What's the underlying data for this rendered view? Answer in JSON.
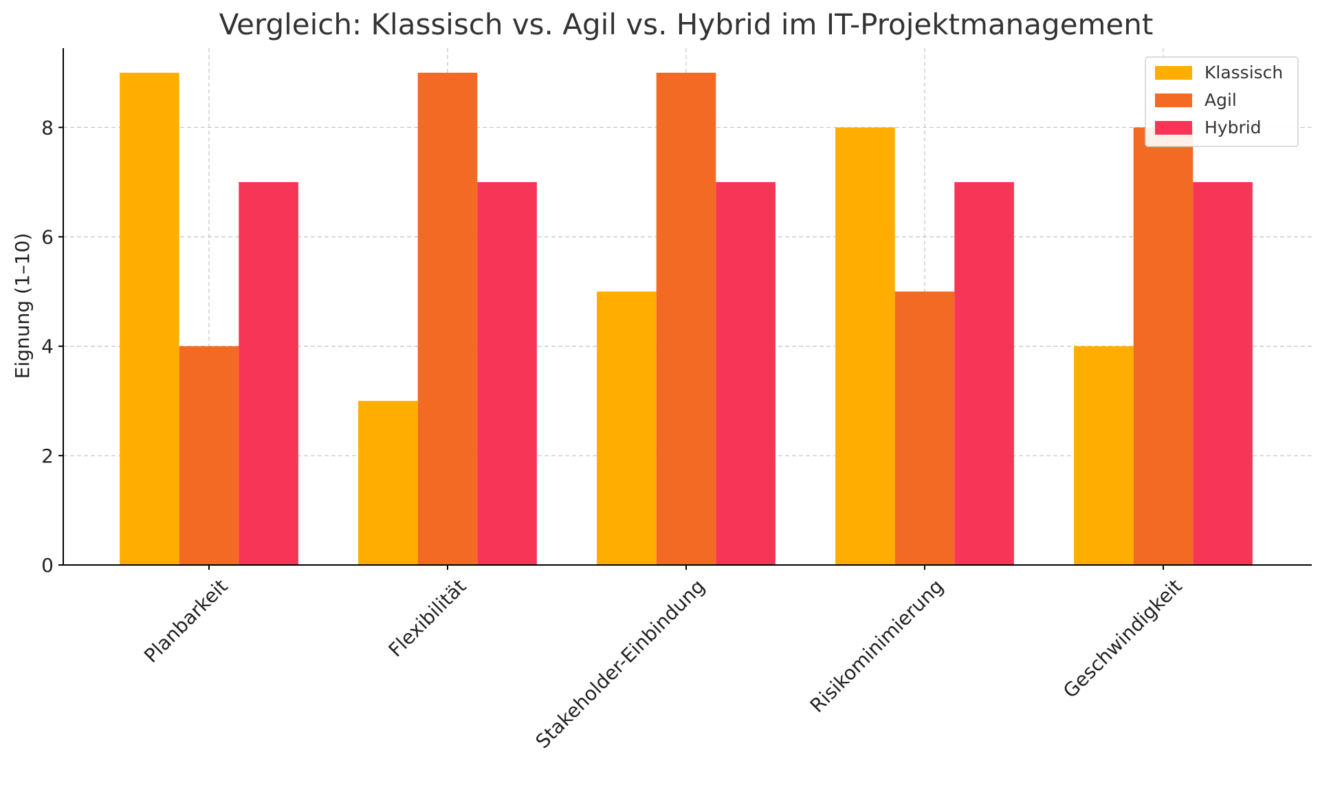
{
  "chart_data": {
    "type": "bar",
    "title": "Vergleich: Klassisch vs. Agil vs. Hybrid im IT-Projektmanagement",
    "xlabel": "",
    "ylabel": "Eignung (1–10)",
    "categories": [
      "Planbarkeit",
      "Flexibilität",
      "Stakeholder-Einbindung",
      "Risikominimierung",
      "Geschwindigkeit"
    ],
    "series": [
      {
        "name": "Klassisch",
        "color": "#FFAE00",
        "values": [
          9,
          3,
          5,
          8,
          4
        ]
      },
      {
        "name": "Agil",
        "color": "#F26A24",
        "values": [
          4,
          9,
          9,
          5,
          8
        ]
      },
      {
        "name": "Hybrid",
        "color": "#F73556",
        "values": [
          7,
          7,
          7,
          7,
          7
        ]
      }
    ],
    "yticks": [
      0,
      2,
      4,
      6,
      8
    ],
    "ylim": [
      0,
      9.45
    ],
    "grid": true,
    "legend": "top-right"
  }
}
